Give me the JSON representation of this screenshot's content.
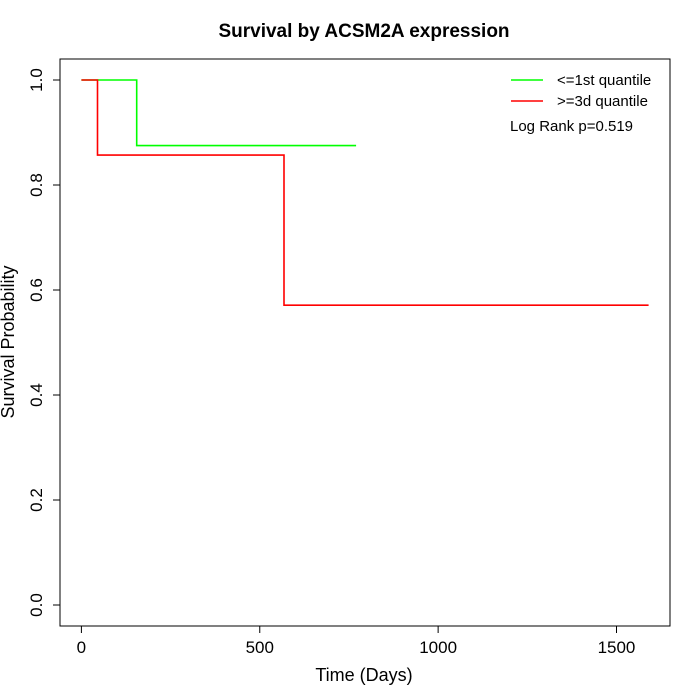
{
  "chart_data": {
    "type": "line",
    "title": "Survival by ACSM2A expression",
    "xlabel": "Time (Days)",
    "ylabel": "Survival Probability",
    "xlim": [
      -60,
      1650
    ],
    "ylim": [
      -0.04,
      1.04
    ],
    "x_ticks": [
      0,
      500,
      1000,
      1500
    ],
    "y_ticks": [
      0.0,
      0.2,
      0.4,
      0.6,
      0.8,
      1.0
    ],
    "x_tick_labels": [
      "0",
      "500",
      "1000",
      "1500"
    ],
    "y_tick_labels": [
      "0.0",
      "0.2",
      "0.4",
      "0.6",
      "0.8",
      "1.0"
    ],
    "grid": false,
    "legend_position": "top-right",
    "series": [
      {
        "name": "<=1st quantile",
        "color": "#00ff00",
        "steps": [
          [
            0,
            1.0
          ],
          [
            155,
            1.0
          ],
          [
            155,
            0.875
          ],
          [
            770,
            0.875
          ]
        ]
      },
      {
        "name": ">=3d quantile",
        "color": "#ff0000",
        "steps": [
          [
            0,
            1.0
          ],
          [
            45,
            1.0
          ],
          [
            45,
            0.857
          ],
          [
            568,
            0.857
          ],
          [
            568,
            0.571
          ],
          [
            1590,
            0.571
          ]
        ]
      }
    ],
    "annotation": "Log Rank p=0.519"
  }
}
